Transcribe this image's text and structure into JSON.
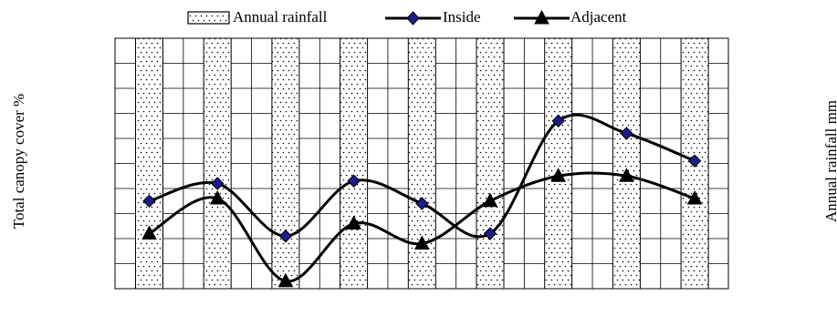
{
  "chart_data": {
    "type": "bar+line",
    "title": "",
    "xlabel": "",
    "ylabel": "Total canopy cover %",
    "y2label": "Annual rainfall mm",
    "categories": [
      "",
      "",
      "",
      "",
      "",
      "",
      "",
      "",
      ""
    ],
    "ylim": [
      0,
      10
    ],
    "grid": true,
    "legend_position": "top",
    "bar_series": {
      "name": "Annual rainfall",
      "values": [
        10,
        10,
        10,
        10,
        10,
        10,
        10,
        10,
        10
      ],
      "pattern": "dotted"
    },
    "series": [
      {
        "name": "Inside",
        "marker": "diamond",
        "color": "#1c1c8c",
        "values": [
          3.5,
          4.2,
          2.1,
          4.3,
          3.4,
          2.2,
          6.7,
          6.2,
          5.1
        ]
      },
      {
        "name": "Adjacent",
        "marker": "triangle",
        "color": "#000000",
        "values": [
          2.2,
          3.6,
          0.3,
          2.6,
          1.8,
          3.5,
          4.5,
          4.5,
          3.6
        ]
      }
    ],
    "legend": [
      "Annual rainfall",
      "Inside",
      "Adjacent"
    ]
  },
  "colors": {
    "line": "#000000",
    "diamond_fill": "#1c1c8c",
    "grid": "#000000",
    "bar_fill": "#ffffff"
  }
}
